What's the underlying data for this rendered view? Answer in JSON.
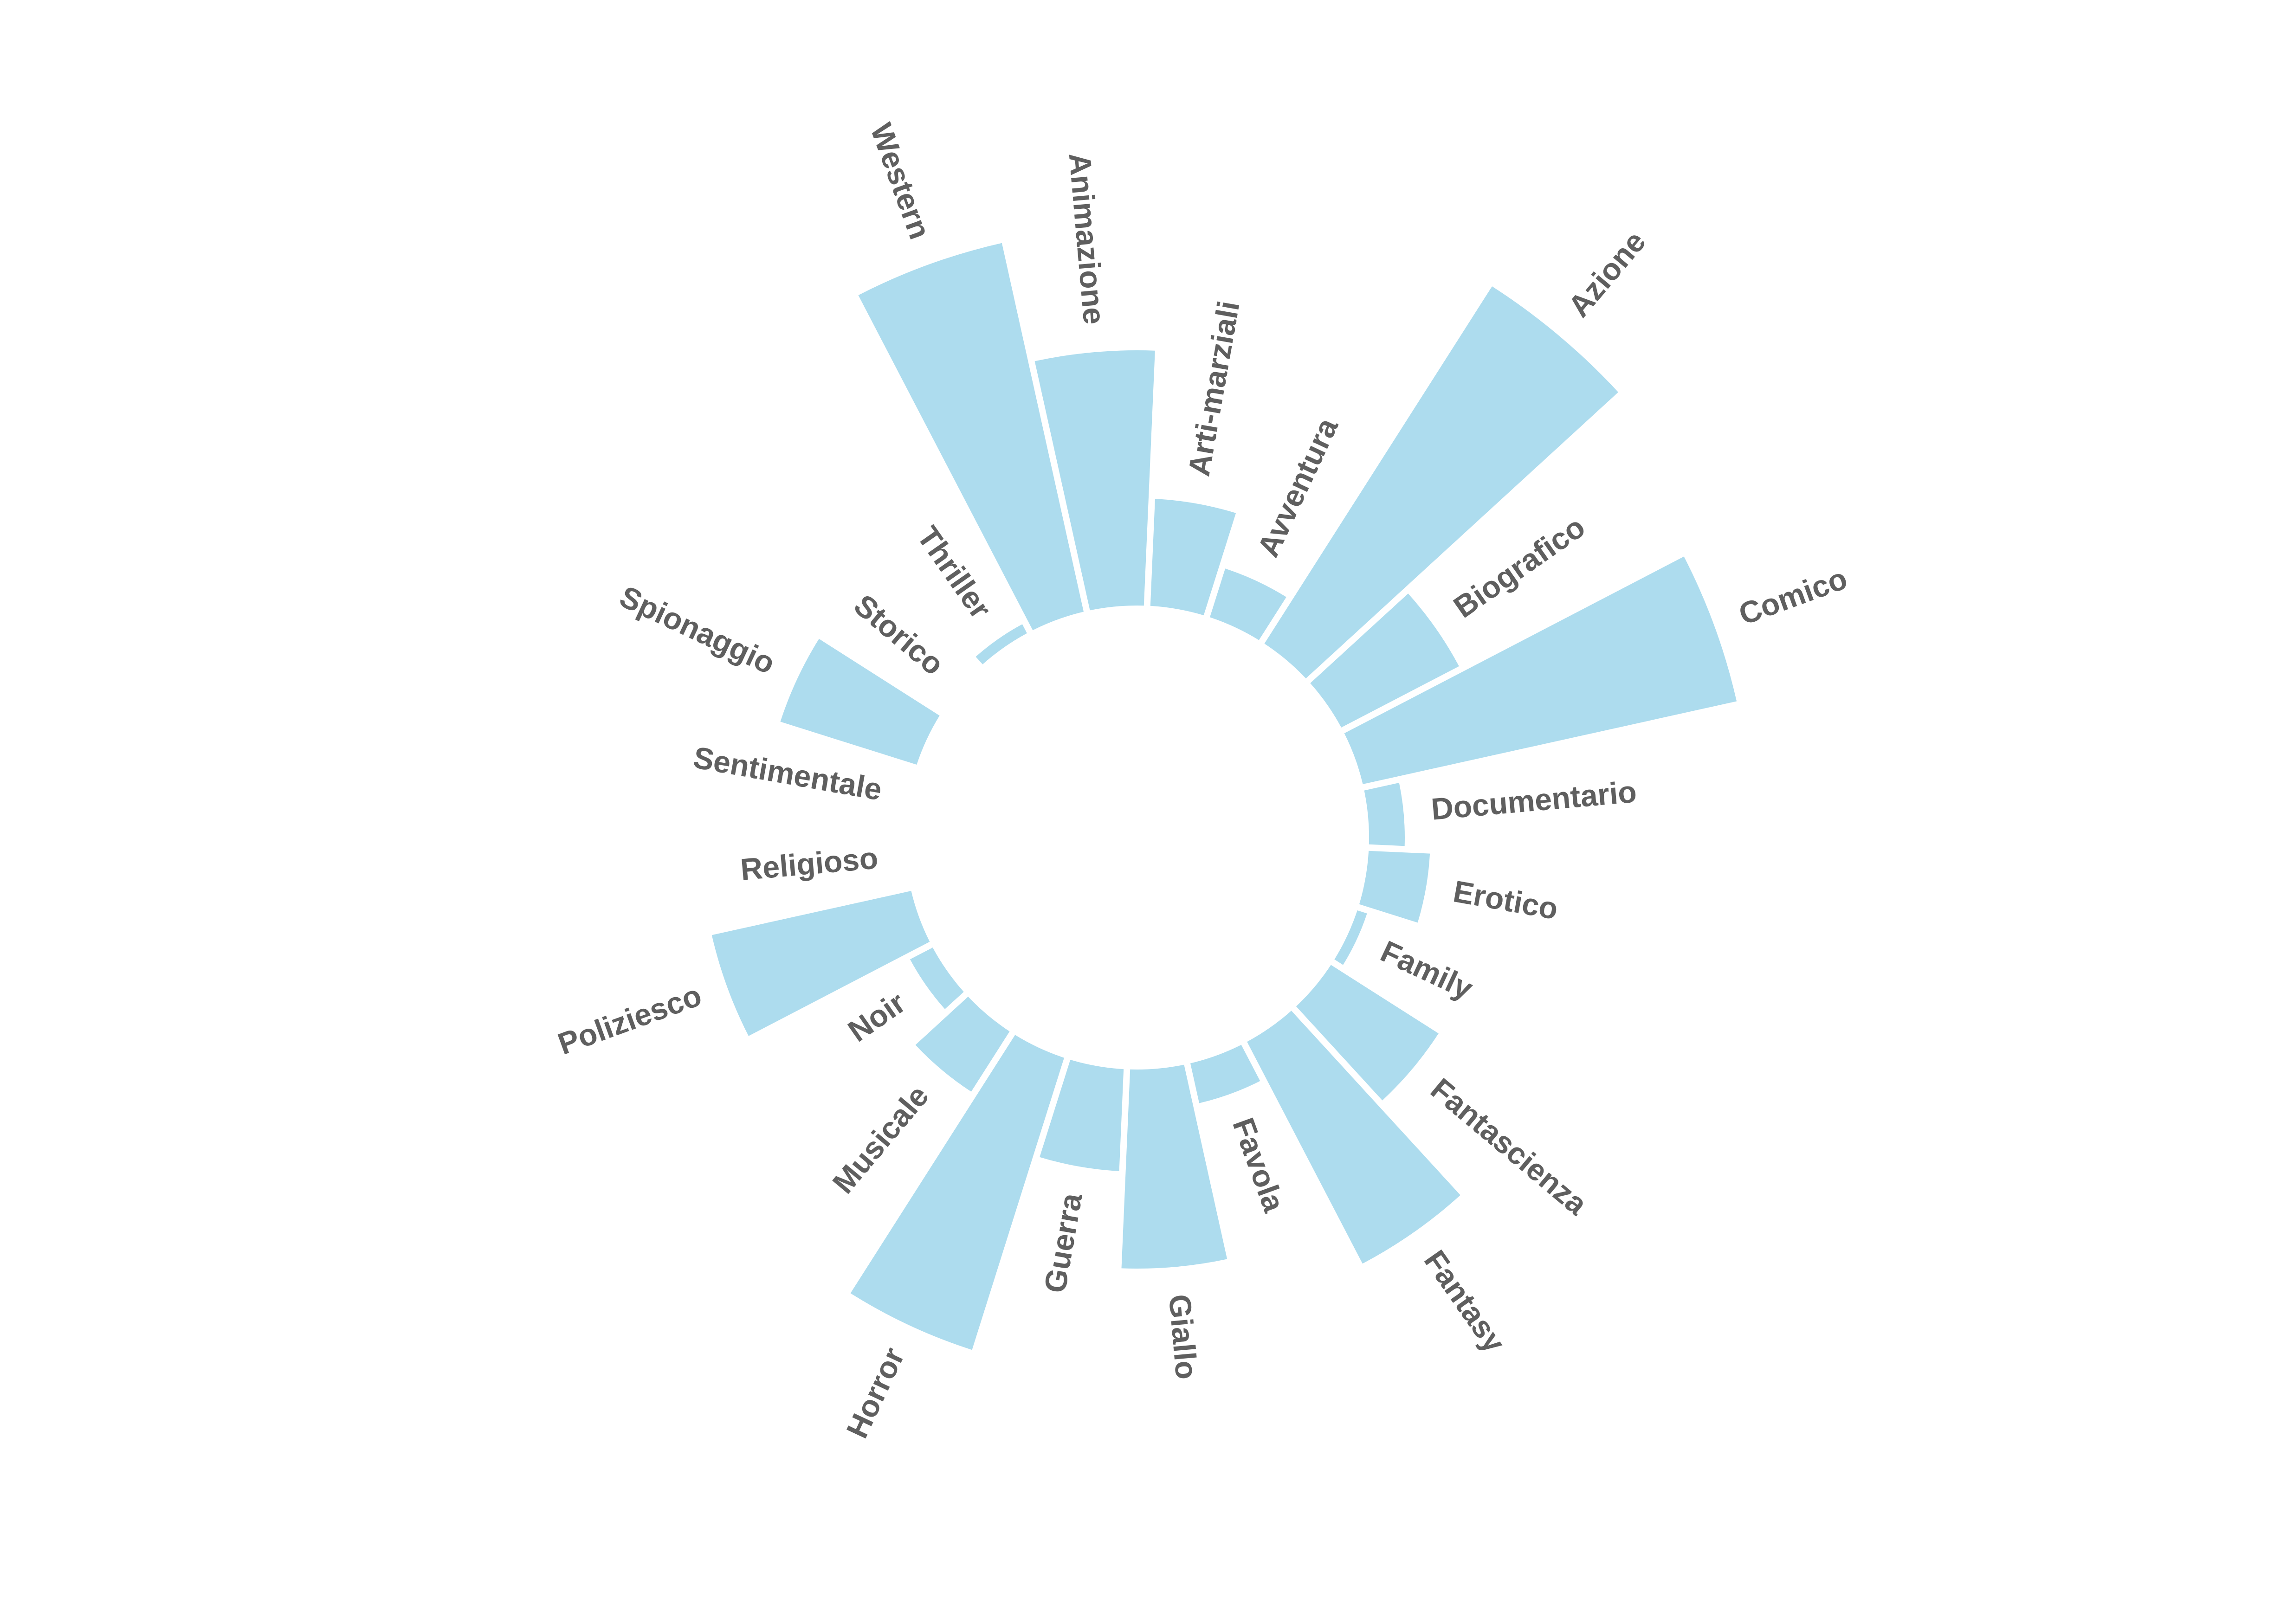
{
  "chart_data": {
    "type": "bar",
    "polar": true,
    "categories": [
      "Azione",
      "Biografico",
      "Comico",
      "Documentario",
      "Erotico",
      "Family",
      "Fantascienza",
      "Fantasy",
      "Favola",
      "Giallo",
      "Guerra",
      "Horror",
      "Musicale",
      "Noir",
      "Poliziesco",
      "Religioso",
      "Sentimentale",
      "Spionaggio",
      "Storico",
      "Thriller",
      "Western",
      "Animazione",
      "Arti-marziali",
      "Avventura"
    ],
    "values": [
      0.83,
      0.26,
      0.75,
      0.07,
      0.12,
      0.02,
      0.25,
      0.49,
      0.08,
      0.39,
      0.2,
      0.6,
      0.14,
      0.05,
      0.4,
      0.0,
      0.0,
      0.28,
      0.0,
      0.02,
      0.74,
      0.5,
      0.21,
      0.1
    ],
    "colors": {
      "bar": "#ADDCEE",
      "label": "#5F5F5F",
      "background": "#FFFFFF"
    },
    "grid": false,
    "legend": "none"
  }
}
